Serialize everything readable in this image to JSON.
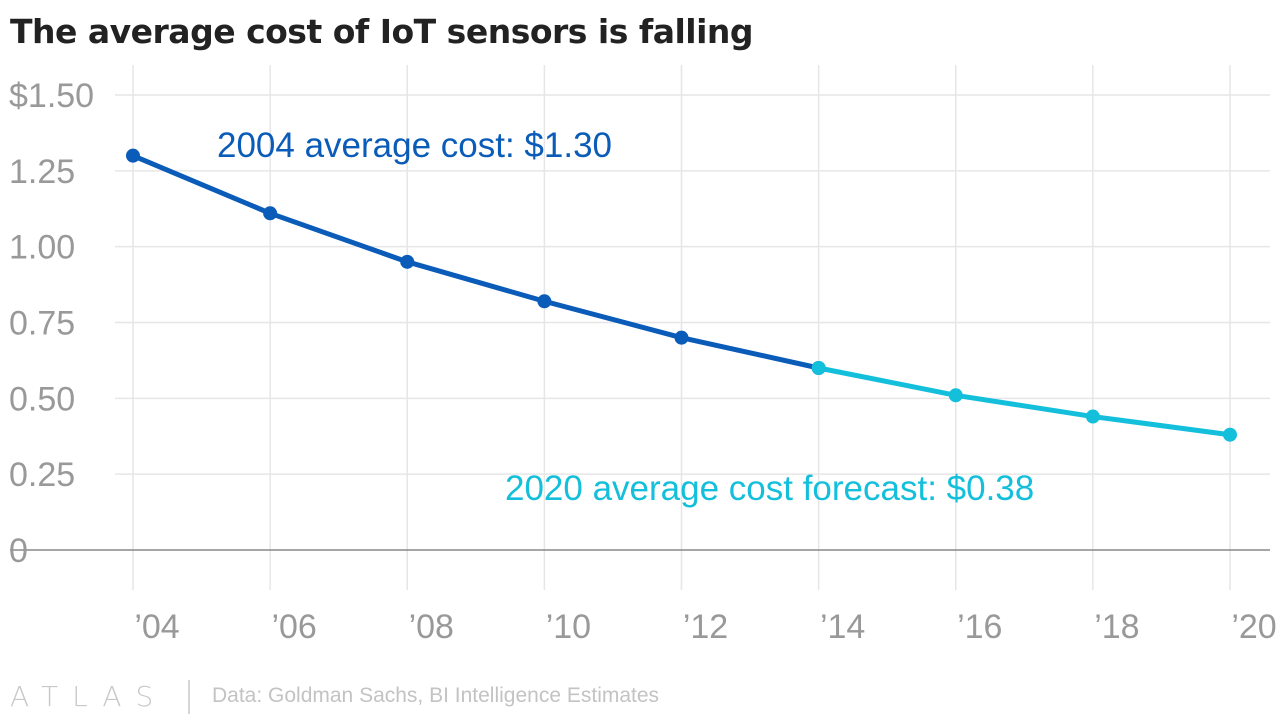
{
  "title": "The average cost of IoT sensors is falling",
  "footer": {
    "logo": "ATLAS",
    "source": "Data: Goldman Sachs, BI Intelligence Estimates"
  },
  "colors": {
    "historical": "#0a5cb8",
    "forecast": "#14bfdc",
    "tick_text": "#999999",
    "grid": "#e6e6e6",
    "baseline": "#888888"
  },
  "chart_data": {
    "type": "line",
    "title": "The average cost of IoT sensors is falling",
    "x": [
      2004,
      2006,
      2008,
      2010,
      2012,
      2014,
      2016,
      2018,
      2020
    ],
    "x_tick_labels": [
      "’04",
      "’06",
      "’08",
      "’10",
      "’12",
      "’14",
      "’16",
      "’18",
      "’20"
    ],
    "y_tick_values": [
      0,
      0.25,
      0.5,
      0.75,
      1.0,
      1.25,
      1.5
    ],
    "y_tick_labels": [
      "0",
      "0.25",
      "0.50",
      "0.75",
      "1.00",
      "1.25",
      "$1.50"
    ],
    "ylim": [
      0,
      1.5
    ],
    "xlim": [
      2004,
      2020
    ],
    "grid": true,
    "series": [
      {
        "x": [
          2004,
          2006,
          2008,
          2010,
          2012,
          2014
        ],
        "values": [
          1.3,
          1.11,
          0.95,
          0.82,
          0.7,
          0.6
        ],
        "color": "#0a5cb8"
      },
      {
        "x": [
          2014,
          2016,
          2018,
          2020
        ],
        "values": [
          0.6,
          0.51,
          0.44,
          0.38
        ],
        "color": "#14bfdc"
      }
    ],
    "annotations": [
      {
        "text": "2004 average cost: $1.30",
        "x": 2004,
        "y": 1.3,
        "color": "#0a5cb8"
      },
      {
        "text": "2020 average cost forecast: $0.38",
        "x": 2020,
        "y": 0.38,
        "color": "#14bfdc"
      }
    ]
  }
}
